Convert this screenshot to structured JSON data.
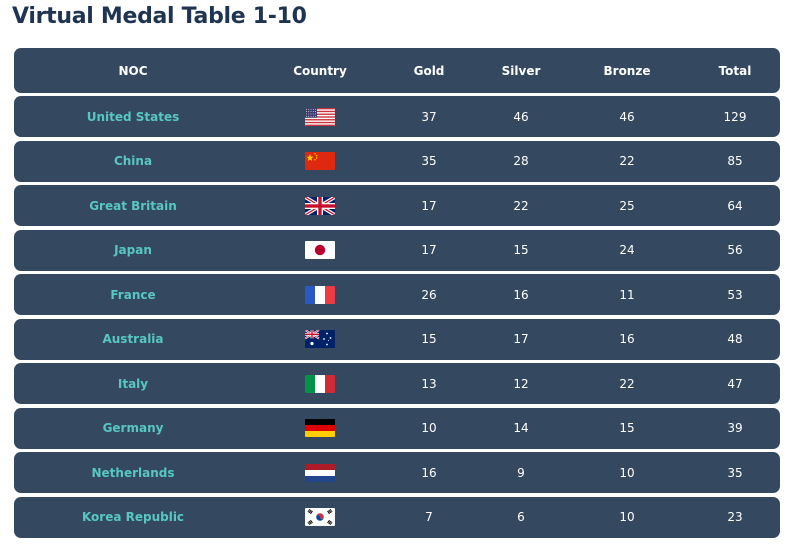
{
  "title": "Virtual Medal Table 1-10",
  "headers": {
    "noc": "NOC",
    "country": "Country",
    "gold": "Gold",
    "silver": "Silver",
    "bronze": "Bronze",
    "total": "Total"
  },
  "chart_data": {
    "type": "table",
    "title": "Virtual Medal Table 1-10",
    "columns": [
      "NOC",
      "Country",
      "Gold",
      "Silver",
      "Bronze",
      "Total"
    ],
    "rows": [
      {
        "noc": "United States",
        "flag": "us-flag-icon",
        "gold": 37,
        "silver": 46,
        "bronze": 46,
        "total": 129
      },
      {
        "noc": "China",
        "flag": "china-flag-icon",
        "gold": 35,
        "silver": 28,
        "bronze": 22,
        "total": 85
      },
      {
        "noc": "Great Britain",
        "flag": "uk-flag-icon",
        "gold": 17,
        "silver": 22,
        "bronze": 25,
        "total": 64
      },
      {
        "noc": "Japan",
        "flag": "japan-flag-icon",
        "gold": 17,
        "silver": 15,
        "bronze": 24,
        "total": 56
      },
      {
        "noc": "France",
        "flag": "france-flag-icon",
        "gold": 26,
        "silver": 16,
        "bronze": 11,
        "total": 53
      },
      {
        "noc": "Australia",
        "flag": "australia-flag-icon",
        "gold": 15,
        "silver": 17,
        "bronze": 16,
        "total": 48
      },
      {
        "noc": "Italy",
        "flag": "italy-flag-icon",
        "gold": 13,
        "silver": 12,
        "bronze": 22,
        "total": 47
      },
      {
        "noc": "Germany",
        "flag": "germany-flag-icon",
        "gold": 10,
        "silver": 14,
        "bronze": 15,
        "total": 39
      },
      {
        "noc": "Netherlands",
        "flag": "netherlands-flag-icon",
        "gold": 16,
        "silver": 9,
        "bronze": 10,
        "total": 35
      },
      {
        "noc": "Korea Republic",
        "flag": "korea-flag-icon",
        "gold": 7,
        "silver": 6,
        "bronze": 10,
        "total": 23
      }
    ]
  },
  "colors": {
    "title": "#1e3452",
    "row_background": "#34495f",
    "noc_text": "#58c7c4",
    "value_text": "#ffffff"
  }
}
